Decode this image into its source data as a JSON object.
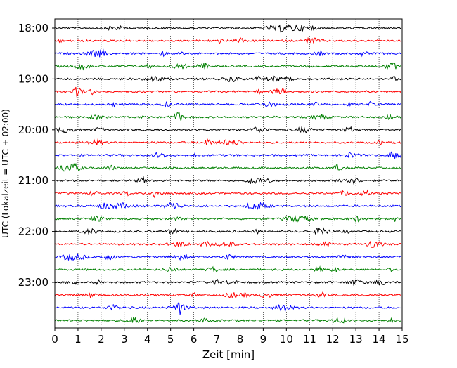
{
  "chart_data": {
    "type": "line",
    "title": "",
    "xlabel": "Zeit  [min]",
    "ylabel": "UTC (Lokalzeit = UTC + 02:00)",
    "xlim": [
      0,
      15
    ],
    "x_ticks": [
      "0",
      "1",
      "2",
      "3",
      "4",
      "5",
      "6",
      "7",
      "8",
      "9",
      "10",
      "11",
      "12",
      "13",
      "14",
      "15"
    ],
    "y_ticks": [
      "18:00",
      "19:00",
      "20:00",
      "21:00",
      "22:00",
      "23:00"
    ],
    "grid": "vertical dotted at each minute",
    "trace_interval_minutes": 15,
    "first_trace": "18:00",
    "trace_count": 24,
    "colors": [
      "#000000",
      "#ff0000",
      "#0000ff",
      "#008000"
    ],
    "traces": [
      {
        "start": "18:00",
        "color": "#000000"
      },
      {
        "start": "18:15",
        "color": "#ff0000"
      },
      {
        "start": "18:30",
        "color": "#0000ff"
      },
      {
        "start": "18:45",
        "color": "#008000"
      },
      {
        "start": "19:00",
        "color": "#000000"
      },
      {
        "start": "19:15",
        "color": "#ff0000"
      },
      {
        "start": "19:30",
        "color": "#0000ff"
      },
      {
        "start": "19:45",
        "color": "#008000"
      },
      {
        "start": "20:00",
        "color": "#000000"
      },
      {
        "start": "20:15",
        "color": "#ff0000"
      },
      {
        "start": "20:30",
        "color": "#0000ff"
      },
      {
        "start": "20:45",
        "color": "#008000"
      },
      {
        "start": "21:00",
        "color": "#000000"
      },
      {
        "start": "21:15",
        "color": "#ff0000"
      },
      {
        "start": "21:30",
        "color": "#0000ff"
      },
      {
        "start": "21:45",
        "color": "#008000"
      },
      {
        "start": "22:00",
        "color": "#000000"
      },
      {
        "start": "22:15",
        "color": "#ff0000"
      },
      {
        "start": "22:30",
        "color": "#0000ff"
      },
      {
        "start": "22:45",
        "color": "#008000"
      },
      {
        "start": "23:00",
        "color": "#000000"
      },
      {
        "start": "23:15",
        "color": "#ff0000"
      },
      {
        "start": "23:30",
        "color": "#0000ff"
      },
      {
        "start": "23:45",
        "color": "#008000"
      }
    ]
  }
}
